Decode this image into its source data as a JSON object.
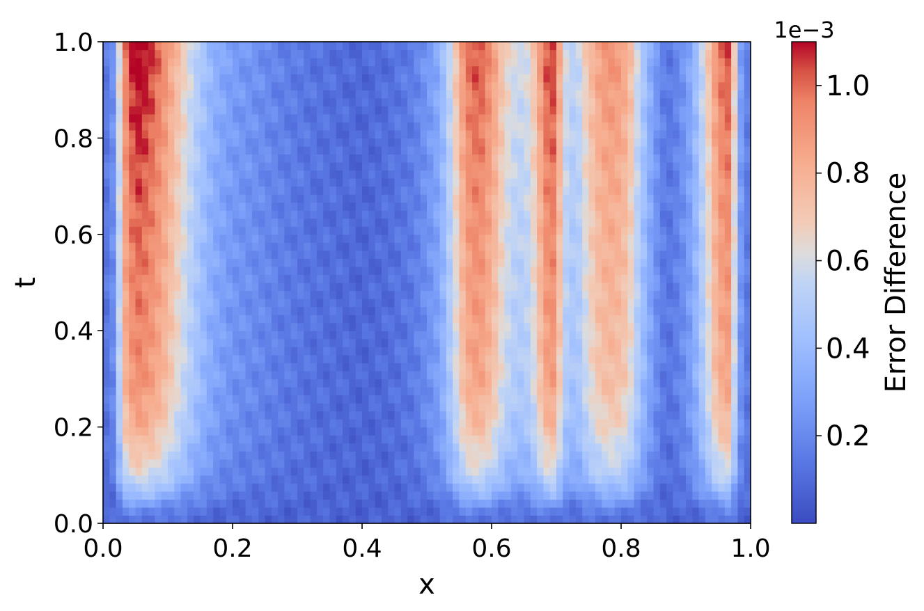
{
  "chart_data": {
    "type": "heatmap",
    "title": "",
    "xlabel": "x",
    "ylabel": "t",
    "xlim": [
      0.0,
      1.0
    ],
    "ylim": [
      0.0,
      1.0
    ],
    "xticks": [
      "0.0",
      "0.2",
      "0.4",
      "0.6",
      "0.8",
      "1.0"
    ],
    "yticks": [
      "0.0",
      "0.2",
      "0.4",
      "0.6",
      "0.8",
      "1.0"
    ],
    "colormap": "coolwarm",
    "grid": false,
    "colorbar": {
      "label": "Error Difference",
      "offset_text": "1e−3",
      "range": [
        0.0,
        1.1
      ],
      "ticks": [
        "0.2",
        "0.4",
        "0.6",
        "0.8",
        "1.0"
      ]
    },
    "x_profile_x": [
      0.0,
      0.015,
      0.025,
      0.035,
      0.05,
      0.07,
      0.09,
      0.11,
      0.13,
      0.15,
      0.17,
      0.2,
      0.24,
      0.28,
      0.32,
      0.36,
      0.4,
      0.44,
      0.48,
      0.5,
      0.52,
      0.54,
      0.56,
      0.58,
      0.6,
      0.62,
      0.64,
      0.66,
      0.68,
      0.69,
      0.7,
      0.71,
      0.73,
      0.75,
      0.77,
      0.79,
      0.81,
      0.83,
      0.85,
      0.87,
      0.89,
      0.91,
      0.93,
      0.95,
      0.965,
      0.975,
      0.985,
      1.0
    ],
    "x_profile_value": [
      0.1,
      0.2,
      0.55,
      0.85,
      1.0,
      0.95,
      0.85,
      0.7,
      0.55,
      0.42,
      0.32,
      0.24,
      0.2,
      0.15,
      0.12,
      0.1,
      0.08,
      0.1,
      0.15,
      0.22,
      0.3,
      0.55,
      0.85,
      0.92,
      0.8,
      0.6,
      0.5,
      0.55,
      0.85,
      0.95,
      0.9,
      0.55,
      0.45,
      0.65,
      0.78,
      0.8,
      0.72,
      0.45,
      0.25,
      0.12,
      0.18,
      0.3,
      0.55,
      0.85,
      0.9,
      0.6,
      0.25,
      0.1
    ],
    "t_profile_t": [
      0.0,
      0.03,
      0.06,
      0.1,
      0.2,
      0.3,
      0.5,
      0.7,
      0.85,
      1.0
    ],
    "t_profile_factor": [
      0.05,
      0.15,
      0.35,
      0.55,
      0.75,
      0.85,
      0.9,
      0.95,
      1.0,
      1.05
    ]
  }
}
